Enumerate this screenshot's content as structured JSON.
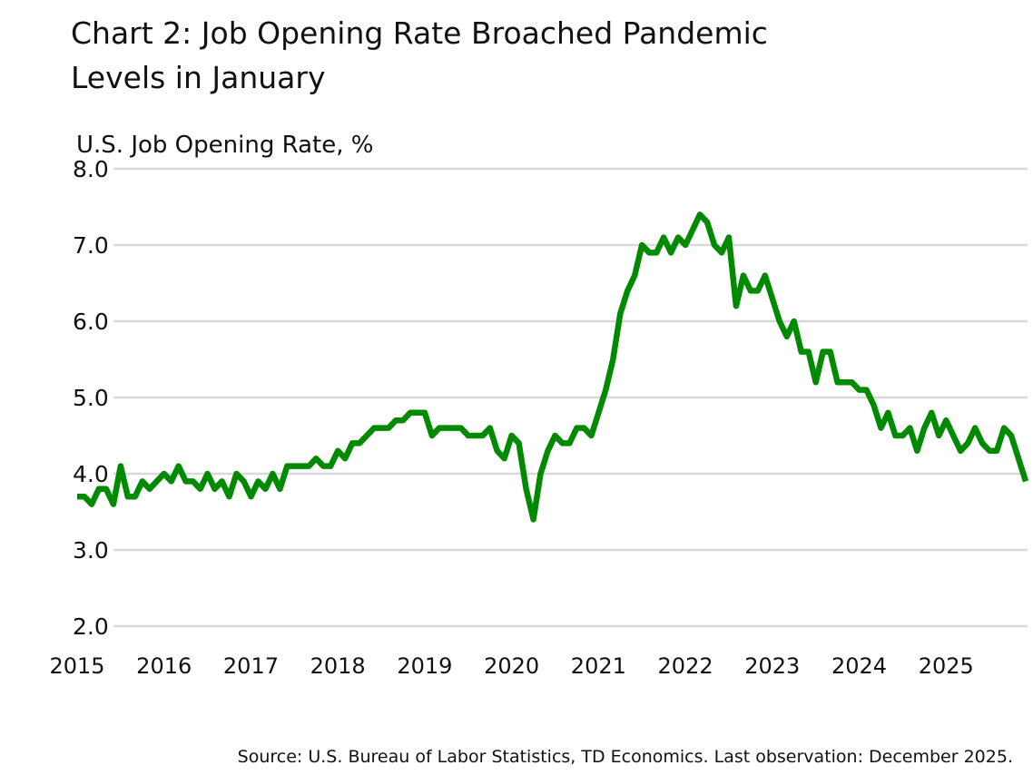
{
  "chart_data": {
    "type": "line",
    "title": "Chart 2: Job Opening Rate Broached Pandemic Levels in January",
    "title_lines": [
      "Chart 2: Job Opening Rate Broached Pandemic",
      "Levels in January"
    ],
    "ylabel": "U.S. Job Opening Rate, %",
    "xlabel": "",
    "ylim": [
      2.0,
      8.0
    ],
    "yticks": [
      "2.0",
      "3.0",
      "4.0",
      "5.0",
      "6.0",
      "7.0",
      "8.0"
    ],
    "xticks": [
      "2015",
      "2016",
      "2017",
      "2018",
      "2019",
      "2020",
      "2021",
      "2022",
      "2023",
      "2024",
      "2025"
    ],
    "grid": "horizontal",
    "line_color": "#008a00",
    "frequency": "monthly",
    "start": "2015-01",
    "end": "2025-12",
    "values": [
      3.7,
      3.7,
      3.6,
      3.8,
      3.8,
      3.6,
      4.1,
      3.7,
      3.7,
      3.9,
      3.8,
      3.9,
      4.0,
      3.9,
      4.1,
      3.9,
      3.9,
      3.8,
      4.0,
      3.8,
      3.9,
      3.7,
      4.0,
      3.9,
      3.7,
      3.9,
      3.8,
      4.0,
      3.8,
      4.1,
      4.1,
      4.1,
      4.1,
      4.2,
      4.1,
      4.1,
      4.3,
      4.2,
      4.4,
      4.4,
      4.5,
      4.6,
      4.6,
      4.6,
      4.7,
      4.7,
      4.8,
      4.8,
      4.8,
      4.5,
      4.6,
      4.6,
      4.6,
      4.6,
      4.5,
      4.5,
      4.5,
      4.6,
      4.3,
      4.2,
      4.5,
      4.4,
      3.8,
      3.4,
      4.0,
      4.3,
      4.5,
      4.4,
      4.4,
      4.6,
      4.6,
      4.5,
      4.8,
      5.1,
      5.5,
      6.1,
      6.4,
      6.6,
      7.0,
      6.9,
      6.9,
      7.1,
      6.9,
      7.1,
      7.0,
      7.2,
      7.4,
      7.3,
      7.0,
      6.9,
      7.1,
      6.2,
      6.6,
      6.4,
      6.4,
      6.6,
      6.3,
      6.0,
      5.8,
      6.0,
      5.6,
      5.6,
      5.2,
      5.6,
      5.6,
      5.2,
      5.2,
      5.2,
      5.1,
      5.1,
      4.9,
      4.6,
      4.8,
      4.5,
      4.5,
      4.6,
      4.3,
      4.6,
      4.8,
      4.5,
      4.7,
      4.5,
      4.3,
      4.4,
      4.6,
      4.4,
      4.3,
      4.3,
      4.6,
      4.5,
      4.2,
      3.9
    ],
    "source": "Source: U.S. Bureau of Labor Statistics, TD Economics. Last observation: December 2025."
  }
}
